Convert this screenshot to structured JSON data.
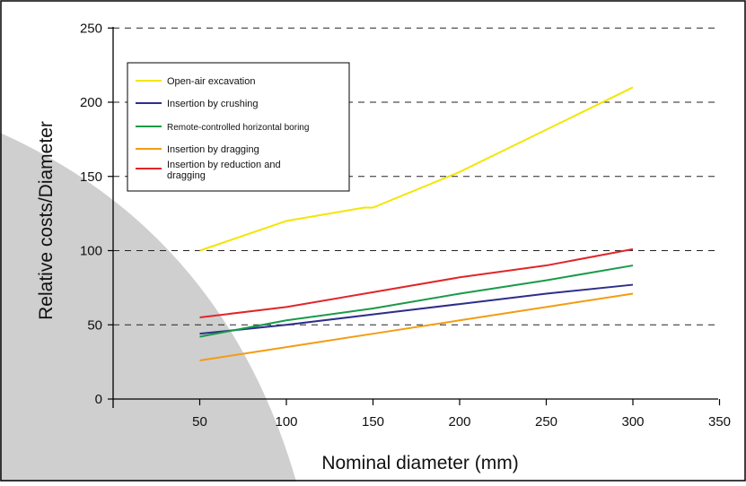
{
  "chart_data": {
    "type": "line",
    "title": "",
    "xlabel": "Nominal diameter (mm)",
    "ylabel": "Relative costs/Diameter",
    "xlim": [
      0,
      350
    ],
    "ylim": [
      0,
      250
    ],
    "xticks": [
      "50",
      "100",
      "150",
      "200",
      "250",
      "300",
      "350"
    ],
    "yticks": [
      "0",
      "50",
      "100",
      "150",
      "200",
      "250"
    ],
    "grid": "horizontal dashed",
    "legend_position": "top-left",
    "series": [
      {
        "name": "Open-air excavation",
        "color": "#f2e600",
        "x": [
          50,
          100,
          145,
          150,
          200,
          300
        ],
        "y": [
          100,
          120,
          129,
          129,
          153,
          210
        ]
      },
      {
        "name": "Insertion by crushing",
        "color": "#2e2e8a",
        "x": [
          50,
          100,
          150,
          200,
          250,
          300
        ],
        "y": [
          44,
          50,
          57,
          64,
          71,
          77
        ]
      },
      {
        "name": "Remote-controlled horizontal boring",
        "color": "#1a9a48",
        "x": [
          50,
          100,
          150,
          200,
          250,
          300
        ],
        "y": [
          42,
          53,
          61,
          71,
          80,
          90
        ]
      },
      {
        "name": "Insertion by dragging",
        "color": "#f39c12",
        "x": [
          50,
          100,
          150,
          200,
          250,
          300
        ],
        "y": [
          26,
          35,
          44,
          53,
          62,
          71
        ]
      },
      {
        "name": "Insertion by reduction and dragging",
        "color": "#e0262a",
        "x": [
          50,
          100,
          150,
          200,
          250,
          300
        ],
        "y": [
          55,
          62,
          72,
          82,
          90,
          101
        ]
      }
    ]
  }
}
